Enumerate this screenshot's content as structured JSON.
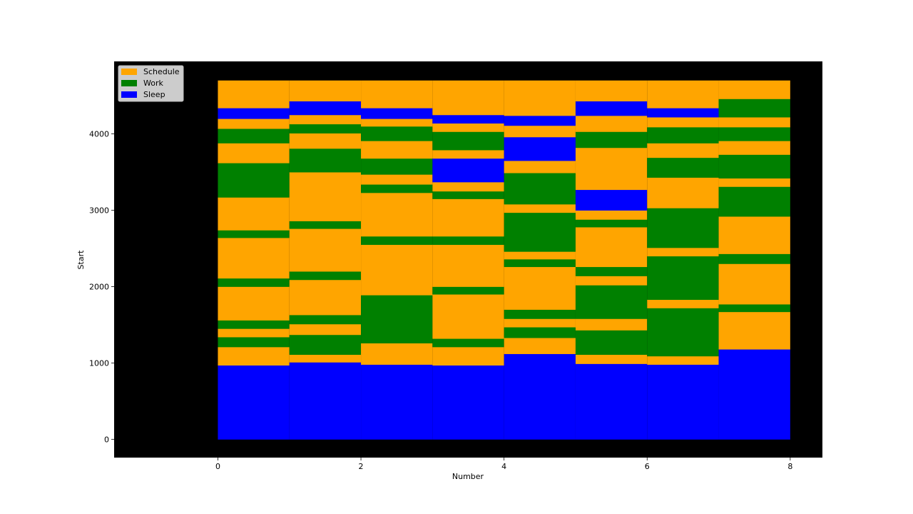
{
  "chart_data": {
    "type": "bar",
    "title": "",
    "xlabel": "Number",
    "ylabel": "Start",
    "xlim": [
      -1.45,
      8.45
    ],
    "ylim": [
      -240,
      4950
    ],
    "xticks": [
      0,
      2,
      4,
      6,
      8
    ],
    "yticks": [
      0,
      1000,
      2000,
      3000,
      4000
    ],
    "grid": false,
    "legend_position": "top-left",
    "axes_background": "#000000",
    "colors": {
      "Schedule": "#ffa500",
      "Work": "#008000",
      "Sleep": "#0000ff"
    },
    "legend": [
      {
        "label": "Schedule",
        "color": "#ffa500"
      },
      {
        "label": "Work",
        "color": "#008000"
      },
      {
        "label": "Sleep",
        "color": "#0000ff"
      }
    ],
    "columns": [
      {
        "x": 0,
        "segments": [
          {
            "category": "Sleep",
            "start": 0,
            "end": 970
          },
          {
            "category": "Schedule",
            "start": 970,
            "end": 1210
          },
          {
            "category": "Work",
            "start": 1210,
            "end": 1340
          },
          {
            "category": "Schedule",
            "start": 1340,
            "end": 1450
          },
          {
            "category": "Work",
            "start": 1450,
            "end": 1560
          },
          {
            "category": "Schedule",
            "start": 1560,
            "end": 2000
          },
          {
            "category": "Work",
            "start": 2000,
            "end": 2110
          },
          {
            "category": "Schedule",
            "start": 2110,
            "end": 2640
          },
          {
            "category": "Work",
            "start": 2640,
            "end": 2740
          },
          {
            "category": "Schedule",
            "start": 2740,
            "end": 3170
          },
          {
            "category": "Work",
            "start": 3170,
            "end": 3620
          },
          {
            "category": "Schedule",
            "start": 3620,
            "end": 3880
          },
          {
            "category": "Work",
            "start": 3880,
            "end": 4070
          },
          {
            "category": "Schedule",
            "start": 4070,
            "end": 4200
          },
          {
            "category": "Sleep",
            "start": 4200,
            "end": 4340
          },
          {
            "category": "Schedule",
            "start": 4340,
            "end": 4700
          }
        ]
      },
      {
        "x": 1,
        "segments": [
          {
            "category": "Sleep",
            "start": 0,
            "end": 1010
          },
          {
            "category": "Schedule",
            "start": 1010,
            "end": 1110
          },
          {
            "category": "Work",
            "start": 1110,
            "end": 1370
          },
          {
            "category": "Schedule",
            "start": 1370,
            "end": 1510
          },
          {
            "category": "Work",
            "start": 1510,
            "end": 1630
          },
          {
            "category": "Schedule",
            "start": 1630,
            "end": 2090
          },
          {
            "category": "Work",
            "start": 2090,
            "end": 2200
          },
          {
            "category": "Schedule",
            "start": 2200,
            "end": 2760
          },
          {
            "category": "Work",
            "start": 2760,
            "end": 2860
          },
          {
            "category": "Schedule",
            "start": 2860,
            "end": 3500
          },
          {
            "category": "Work",
            "start": 3500,
            "end": 3810
          },
          {
            "category": "Schedule",
            "start": 3810,
            "end": 4010
          },
          {
            "category": "Work",
            "start": 4010,
            "end": 4130
          },
          {
            "category": "Schedule",
            "start": 4130,
            "end": 4250
          },
          {
            "category": "Sleep",
            "start": 4250,
            "end": 4430
          },
          {
            "category": "Schedule",
            "start": 4430,
            "end": 4700
          }
        ]
      },
      {
        "x": 2,
        "segments": [
          {
            "category": "Sleep",
            "start": 0,
            "end": 980
          },
          {
            "category": "Schedule",
            "start": 980,
            "end": 1260
          },
          {
            "category": "Work",
            "start": 1260,
            "end": 1890
          },
          {
            "category": "Schedule",
            "start": 1890,
            "end": 2550
          },
          {
            "category": "Work",
            "start": 2550,
            "end": 2660
          },
          {
            "category": "Schedule",
            "start": 2660,
            "end": 3230
          },
          {
            "category": "Work",
            "start": 3230,
            "end": 3340
          },
          {
            "category": "Schedule",
            "start": 3340,
            "end": 3470
          },
          {
            "category": "Work",
            "start": 3470,
            "end": 3680
          },
          {
            "category": "Schedule",
            "start": 3680,
            "end": 3910
          },
          {
            "category": "Work",
            "start": 3910,
            "end": 4100
          },
          {
            "category": "Schedule",
            "start": 4100,
            "end": 4200
          },
          {
            "category": "Sleep",
            "start": 4200,
            "end": 4340
          },
          {
            "category": "Schedule",
            "start": 4340,
            "end": 4700
          }
        ]
      },
      {
        "x": 3,
        "segments": [
          {
            "category": "Sleep",
            "start": 0,
            "end": 970
          },
          {
            "category": "Schedule",
            "start": 970,
            "end": 1210
          },
          {
            "category": "Work",
            "start": 1210,
            "end": 1320
          },
          {
            "category": "Schedule",
            "start": 1320,
            "end": 1900
          },
          {
            "category": "Work",
            "start": 1900,
            "end": 2000
          },
          {
            "category": "Schedule",
            "start": 2000,
            "end": 2550
          },
          {
            "category": "Work",
            "start": 2550,
            "end": 2660
          },
          {
            "category": "Schedule",
            "start": 2660,
            "end": 3150
          },
          {
            "category": "Work",
            "start": 3150,
            "end": 3250
          },
          {
            "category": "Schedule",
            "start": 3250,
            "end": 3370
          },
          {
            "category": "Sleep",
            "start": 3370,
            "end": 3680
          },
          {
            "category": "Schedule",
            "start": 3680,
            "end": 3790
          },
          {
            "category": "Work",
            "start": 3790,
            "end": 4030
          },
          {
            "category": "Schedule",
            "start": 4030,
            "end": 4140
          },
          {
            "category": "Sleep",
            "start": 4140,
            "end": 4250
          },
          {
            "category": "Schedule",
            "start": 4250,
            "end": 4700
          }
        ]
      },
      {
        "x": 4,
        "segments": [
          {
            "category": "Sleep",
            "start": 0,
            "end": 1120
          },
          {
            "category": "Schedule",
            "start": 1120,
            "end": 1330
          },
          {
            "category": "Work",
            "start": 1330,
            "end": 1470
          },
          {
            "category": "Schedule",
            "start": 1470,
            "end": 1580
          },
          {
            "category": "Work",
            "start": 1580,
            "end": 1700
          },
          {
            "category": "Schedule",
            "start": 1700,
            "end": 2260
          },
          {
            "category": "Work",
            "start": 2260,
            "end": 2360
          },
          {
            "category": "Schedule",
            "start": 2360,
            "end": 2460
          },
          {
            "category": "Work",
            "start": 2460,
            "end": 2970
          },
          {
            "category": "Schedule",
            "start": 2970,
            "end": 3080
          },
          {
            "category": "Work",
            "start": 3080,
            "end": 3490
          },
          {
            "category": "Schedule",
            "start": 3490,
            "end": 3650
          },
          {
            "category": "Sleep",
            "start": 3650,
            "end": 3960
          },
          {
            "category": "Schedule",
            "start": 3960,
            "end": 4110
          },
          {
            "category": "Sleep",
            "start": 4110,
            "end": 4240
          },
          {
            "category": "Schedule",
            "start": 4240,
            "end": 4700
          }
        ]
      },
      {
        "x": 5,
        "segments": [
          {
            "category": "Sleep",
            "start": 0,
            "end": 990
          },
          {
            "category": "Schedule",
            "start": 990,
            "end": 1110
          },
          {
            "category": "Work",
            "start": 1110,
            "end": 1430
          },
          {
            "category": "Schedule",
            "start": 1430,
            "end": 1580
          },
          {
            "category": "Work",
            "start": 1580,
            "end": 2020
          },
          {
            "category": "Schedule",
            "start": 2020,
            "end": 2140
          },
          {
            "category": "Work",
            "start": 2140,
            "end": 2260
          },
          {
            "category": "Schedule",
            "start": 2260,
            "end": 2780
          },
          {
            "category": "Work",
            "start": 2780,
            "end": 2880
          },
          {
            "category": "Schedule",
            "start": 2880,
            "end": 3000
          },
          {
            "category": "Sleep",
            "start": 3000,
            "end": 3270
          },
          {
            "category": "Schedule",
            "start": 3270,
            "end": 3820
          },
          {
            "category": "Work",
            "start": 3820,
            "end": 4030
          },
          {
            "category": "Schedule",
            "start": 4030,
            "end": 4240
          },
          {
            "category": "Sleep",
            "start": 4240,
            "end": 4430
          },
          {
            "category": "Schedule",
            "start": 4430,
            "end": 4700
          }
        ]
      },
      {
        "x": 6,
        "segments": [
          {
            "category": "Sleep",
            "start": 0,
            "end": 980
          },
          {
            "category": "Schedule",
            "start": 980,
            "end": 1090
          },
          {
            "category": "Work",
            "start": 1090,
            "end": 1720
          },
          {
            "category": "Schedule",
            "start": 1720,
            "end": 1830
          },
          {
            "category": "Work",
            "start": 1830,
            "end": 2400
          },
          {
            "category": "Schedule",
            "start": 2400,
            "end": 2510
          },
          {
            "category": "Work",
            "start": 2510,
            "end": 3030
          },
          {
            "category": "Schedule",
            "start": 3030,
            "end": 3430
          },
          {
            "category": "Work",
            "start": 3430,
            "end": 3690
          },
          {
            "category": "Schedule",
            "start": 3690,
            "end": 3880
          },
          {
            "category": "Work",
            "start": 3880,
            "end": 4090
          },
          {
            "category": "Schedule",
            "start": 4090,
            "end": 4220
          },
          {
            "category": "Sleep",
            "start": 4220,
            "end": 4340
          },
          {
            "category": "Schedule",
            "start": 4340,
            "end": 4700
          }
        ]
      },
      {
        "x": 7,
        "segments": [
          {
            "category": "Sleep",
            "start": 0,
            "end": 1180
          },
          {
            "category": "Schedule",
            "start": 1180,
            "end": 1670
          },
          {
            "category": "Work",
            "start": 1670,
            "end": 1770
          },
          {
            "category": "Schedule",
            "start": 1770,
            "end": 2300
          },
          {
            "category": "Work",
            "start": 2300,
            "end": 2430
          },
          {
            "category": "Schedule",
            "start": 2430,
            "end": 2920
          },
          {
            "category": "Work",
            "start": 2920,
            "end": 3310
          },
          {
            "category": "Schedule",
            "start": 3310,
            "end": 3420
          },
          {
            "category": "Work",
            "start": 3420,
            "end": 3730
          },
          {
            "category": "Schedule",
            "start": 3730,
            "end": 3910
          },
          {
            "category": "Work",
            "start": 3910,
            "end": 4090
          },
          {
            "category": "Schedule",
            "start": 4090,
            "end": 4220
          },
          {
            "category": "Work",
            "start": 4220,
            "end": 4460
          },
          {
            "category": "Schedule",
            "start": 4460,
            "end": 4700
          }
        ]
      }
    ]
  }
}
